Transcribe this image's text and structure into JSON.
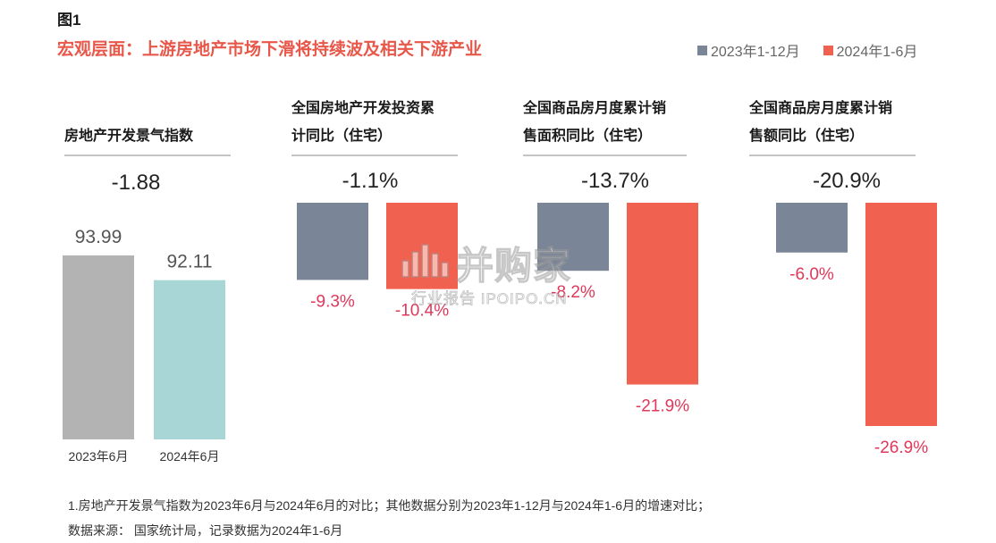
{
  "figure_label": "图1",
  "title": "宏观层面：上游房地产市场下滑将持续波及相关下游产业",
  "legend": [
    {
      "label": "2023年1-12月",
      "color": "#7a8597"
    },
    {
      "label": "2024年1-6月",
      "color": "#f06150"
    }
  ],
  "colors": {
    "gray_bar": "#b3b3b3",
    "teal_bar": "#a8d5d6",
    "slate_bar": "#7a8597",
    "red_bar": "#f06150",
    "neg_label": "#e0375a",
    "pos_label": "#555555",
    "headline": "#222222"
  },
  "chart_data": [
    {
      "type": "bar",
      "title": "房地产开发景气指数",
      "headline": "-1.88",
      "categories": [
        "2023年6月",
        "2024年6月"
      ],
      "values": [
        93.99,
        92.11
      ],
      "value_labels": [
        "93.99",
        "92.11"
      ]
    },
    {
      "type": "bar",
      "title_lines": [
        "全国房地产开发投资累",
        "计同比（住宅）"
      ],
      "headline": "-1.1%",
      "series": [
        {
          "name": "2023年1-12月",
          "values": [
            -9.3
          ]
        },
        {
          "name": "2024年1-6月",
          "values": [
            -10.4
          ]
        }
      ],
      "value_labels": [
        "-9.3%",
        "-10.4%"
      ]
    },
    {
      "type": "bar",
      "title_lines": [
        "全国商品房月度累计销",
        "售面积同比（住宅）"
      ],
      "headline": "-13.7%",
      "series": [
        {
          "name": "2023年1-12月",
          "values": [
            -8.2
          ]
        },
        {
          "name": "2024年1-6月",
          "values": [
            -21.9
          ]
        }
      ],
      "value_labels": [
        "-8.2%",
        "-21.9%"
      ]
    },
    {
      "type": "bar",
      "title_lines": [
        "全国商品房月度累计销",
        "售额同比（住宅）"
      ],
      "headline": "-20.9%",
      "series": [
        {
          "name": "2023年1-12月",
          "values": [
            -6.0
          ]
        },
        {
          "name": "2024年1-6月",
          "values": [
            -26.9
          ]
        }
      ],
      "value_labels": [
        "-6.0%",
        "-26.9%"
      ]
    }
  ],
  "footnote": "1.房地产开发景气指数为2023年6月与2024年6月的对比；其他数据分别为2023年1-12月与2024年1-6月的增速对比；",
  "source": "数据来源：  国家统计局，记录数据为2024年1-6月",
  "watermark": {
    "name": "并购家",
    "sub": "行业报告 IPOIPO.CN"
  }
}
